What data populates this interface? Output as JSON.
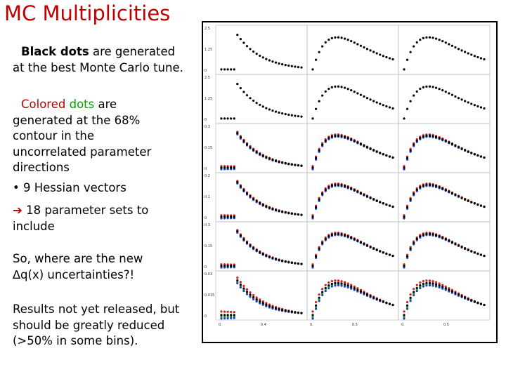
{
  "title": "MC Multiplicities",
  "paragraphs": [
    [
      "Black dots",
      " are generated at the best Monte Carlo tune."
    ],
    [
      "Colored ",
      "dots",
      " are generated at the 68% contour in the uncorrelated parameter directions"
    ],
    [
      "• 9 Hessian vectors"
    ],
    [
      "➔",
      " 18 parameter sets to include"
    ],
    [
      "So, where are the new ∆q(x) uncertainties?!"
    ],
    [
      "Results not yet released, but should be greatly reduced (>50% in some bins)."
    ]
  ],
  "panel_axes": {
    "y_labels": [
      [
        "2.5",
        "1.25",
        "0"
      ],
      [
        "2.5",
        "1.25",
        "0"
      ],
      [
        "0.3",
        "0.15",
        "0"
      ],
      [
        "0.2",
        "0.1",
        "0"
      ],
      [
        "0.3",
        "0.15",
        "0"
      ],
      [
        "0.03",
        "0.015",
        "0"
      ]
    ],
    "x_labels": [
      [
        "0.",
        "0.4"
      ],
      [
        "0.",
        "0.5"
      ],
      [
        "0.",
        "0.5"
      ]
    ]
  }
}
